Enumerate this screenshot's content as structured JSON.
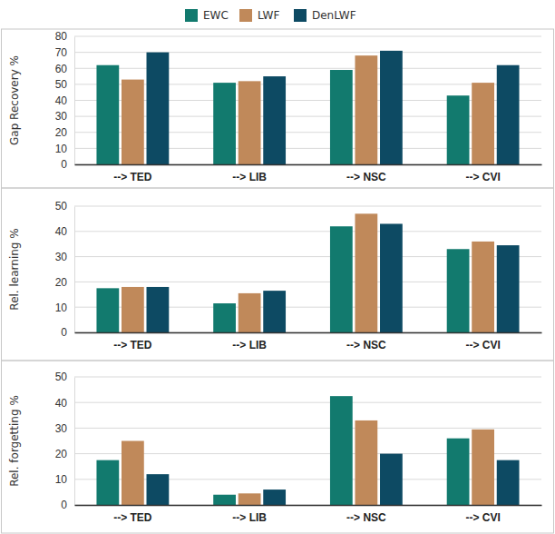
{
  "chart_data": [
    {
      "type": "bar",
      "y_label": "Gap Recovery %",
      "legend": "top",
      "grid": true,
      "categories": [
        "--> TED",
        "--> LIB",
        "--> NSC",
        "--> CVI"
      ],
      "series": [
        {
          "name": "EWC",
          "color": "#127a6e",
          "values": [
            62,
            51,
            59,
            43
          ]
        },
        {
          "name": "LWF",
          "color": "#c0895a",
          "values": [
            53,
            52,
            68,
            51
          ]
        },
        {
          "name": "DenLWF",
          "color": "#0d4a63",
          "values": [
            70,
            55,
            71,
            62
          ]
        }
      ],
      "ylim": [
        0,
        80
      ],
      "yticks": [
        0,
        10,
        20,
        30,
        40,
        50,
        60,
        70,
        80
      ]
    },
    {
      "type": "bar",
      "y_label": "Rel. learning %",
      "grid": true,
      "categories": [
        "--> TED",
        "--> LIB",
        "--> NSC",
        "--> CVI"
      ],
      "series": [
        {
          "name": "EWC",
          "color": "#127a6e",
          "values": [
            17.5,
            11.5,
            42,
            33
          ]
        },
        {
          "name": "LWF",
          "color": "#c0895a",
          "values": [
            18,
            15.5,
            47,
            36
          ]
        },
        {
          "name": "DenLWF",
          "color": "#0d4a63",
          "values": [
            18,
            16.5,
            43,
            34.5
          ]
        }
      ],
      "ylim": [
        0,
        50
      ],
      "yticks": [
        0,
        10,
        20,
        30,
        40,
        50
      ]
    },
    {
      "type": "bar",
      "y_label": "Rel. forgetting %",
      "grid": true,
      "categories": [
        "--> TED",
        "--> LIB",
        "--> NSC",
        "--> CVI"
      ],
      "series": [
        {
          "name": "EWC",
          "color": "#127a6e",
          "values": [
            17.5,
            4,
            42.5,
            26
          ]
        },
        {
          "name": "LWF",
          "color": "#c0895a",
          "values": [
            25,
            4.5,
            33,
            29.5
          ]
        },
        {
          "name": "DenLWF",
          "color": "#0d4a63",
          "values": [
            12,
            6,
            20,
            17.5
          ]
        }
      ],
      "ylim": [
        0,
        50
      ],
      "yticks": [
        0,
        10,
        20,
        30,
        40,
        50
      ]
    }
  ]
}
